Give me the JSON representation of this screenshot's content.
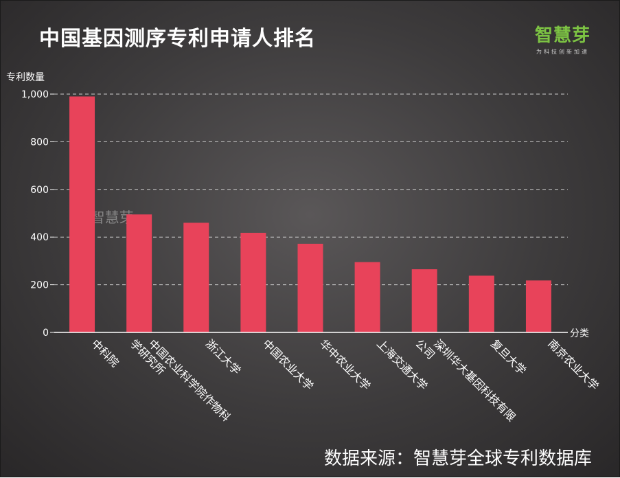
{
  "header": {
    "title": "中国基因测序专利申请人排名",
    "brand_name": "智慧芽",
    "brand_slogan": "为科技创新加速"
  },
  "footer": {
    "source": "数据来源：智慧芽全球专利数据库"
  },
  "watermark": "@ 智慧芽",
  "colors": {
    "bar": "#e8435a",
    "brand": "#7cc243",
    "text": "#ffffff",
    "grid": "#cfcfcf"
  },
  "chart_data": {
    "type": "bar",
    "categories": [
      "中科院",
      "中国农业科学院作物科学研究所",
      "浙江大学",
      "中国农业大学",
      "华中农业大学",
      "上海交通大学",
      "深圳华大基因科技有限公司",
      "复旦大学",
      "南京农业大学"
    ],
    "category_lines": [
      [
        "中科院"
      ],
      [
        "中国农业科学院作物科",
        "学研究所"
      ],
      [
        "浙江大学"
      ],
      [
        "中国农业大学"
      ],
      [
        "华中农业大学"
      ],
      [
        "上海交通大学"
      ],
      [
        "深圳华大基因科技有限",
        "公司"
      ],
      [
        "复旦大学"
      ],
      [
        "南京农业大学"
      ]
    ],
    "values": [
      990,
      495,
      460,
      418,
      372,
      295,
      265,
      238,
      218
    ],
    "ylabel": "专利数量",
    "xlabel": "分类",
    "ylim": [
      0,
      1000
    ],
    "yticks": [
      0,
      200,
      400,
      600,
      800,
      1000
    ],
    "ytick_labels": [
      "0",
      "200",
      "400",
      "600",
      "800",
      "1,000"
    ],
    "grid": true
  }
}
